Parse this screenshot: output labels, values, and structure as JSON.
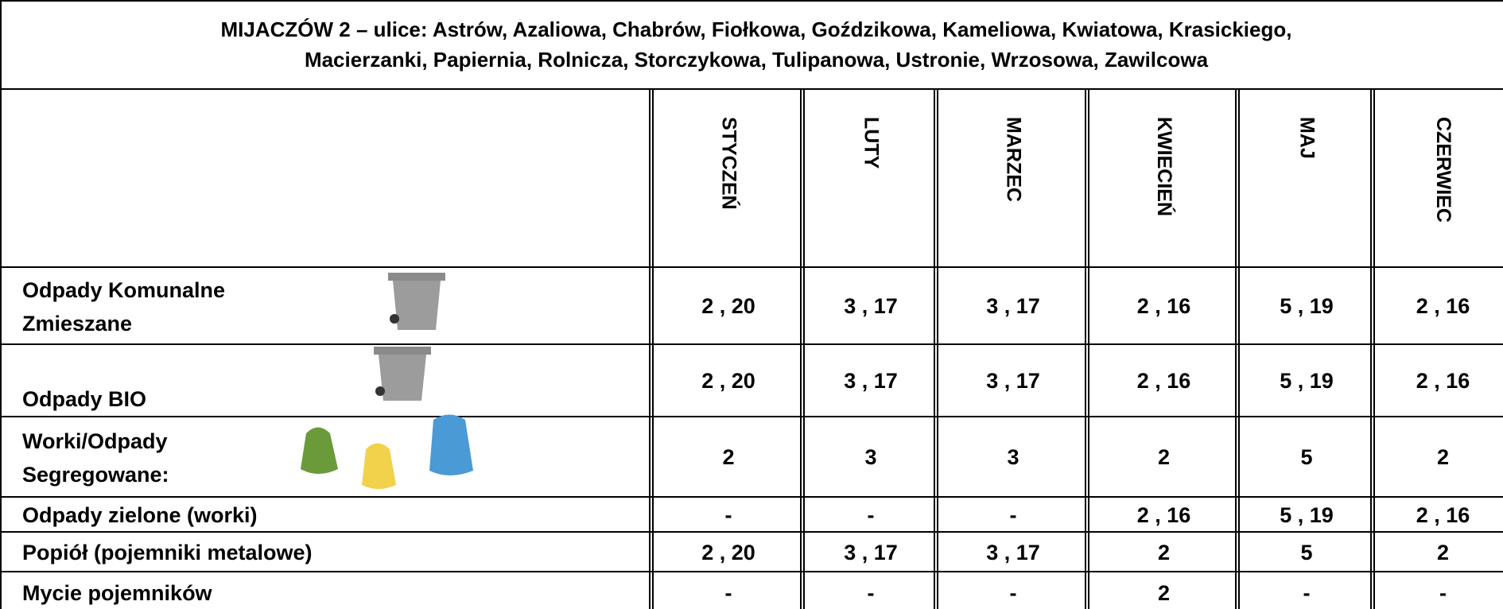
{
  "title": [
    "MIJACZÓW 2 – ulice: Astrów, Azaliowa, Chabrów, Fiołkowa, Goździkowa, Kameliowa, Kwiatowa, Krasickiego,",
    "Macierzanki, Papiernia, Rolnicza, Storczykowa, Tulipanowa, Ustronie, Wrzosowa, Zawilcowa"
  ],
  "header": {
    "months": [
      "STYCZEŃ",
      "LUTY",
      "MARZEC",
      "KWIECIEŃ",
      "MAJ",
      "CZERWIEC"
    ]
  },
  "rows": [
    {
      "label": [
        "Odpady Komunalne",
        "Zmieszane"
      ],
      "values": [
        "2 , 20",
        "3 , 17",
        "3 , 17",
        "2 , 16",
        "5 , 19",
        "2 , 16"
      ]
    },
    {
      "label": [
        "Odpady BIO"
      ],
      "values": [
        "2 , 20",
        "3 , 17",
        "3 , 17",
        "2 , 16",
        "5 , 19",
        "2 , 16"
      ]
    },
    {
      "label": [
        "Worki/Odpady",
        "Segregowane:"
      ],
      "values": [
        "2",
        "3",
        "3",
        "2",
        "5",
        "2"
      ]
    },
    {
      "label": [
        "Odpady zielone (worki)"
      ],
      "values": [
        "-",
        "-",
        "-",
        "2 , 16",
        "5 , 19",
        "2 , 16"
      ]
    },
    {
      "label": [
        "Popiół (pojemniki metalowe)"
      ],
      "values": [
        "2 , 20",
        "3 , 17",
        "3 , 17",
        "2",
        "5",
        "2"
      ]
    },
    {
      "label": [
        "Mycie pojemników"
      ],
      "values": [
        "-",
        "-",
        "-",
        "2",
        "-",
        "-"
      ]
    }
  ]
}
